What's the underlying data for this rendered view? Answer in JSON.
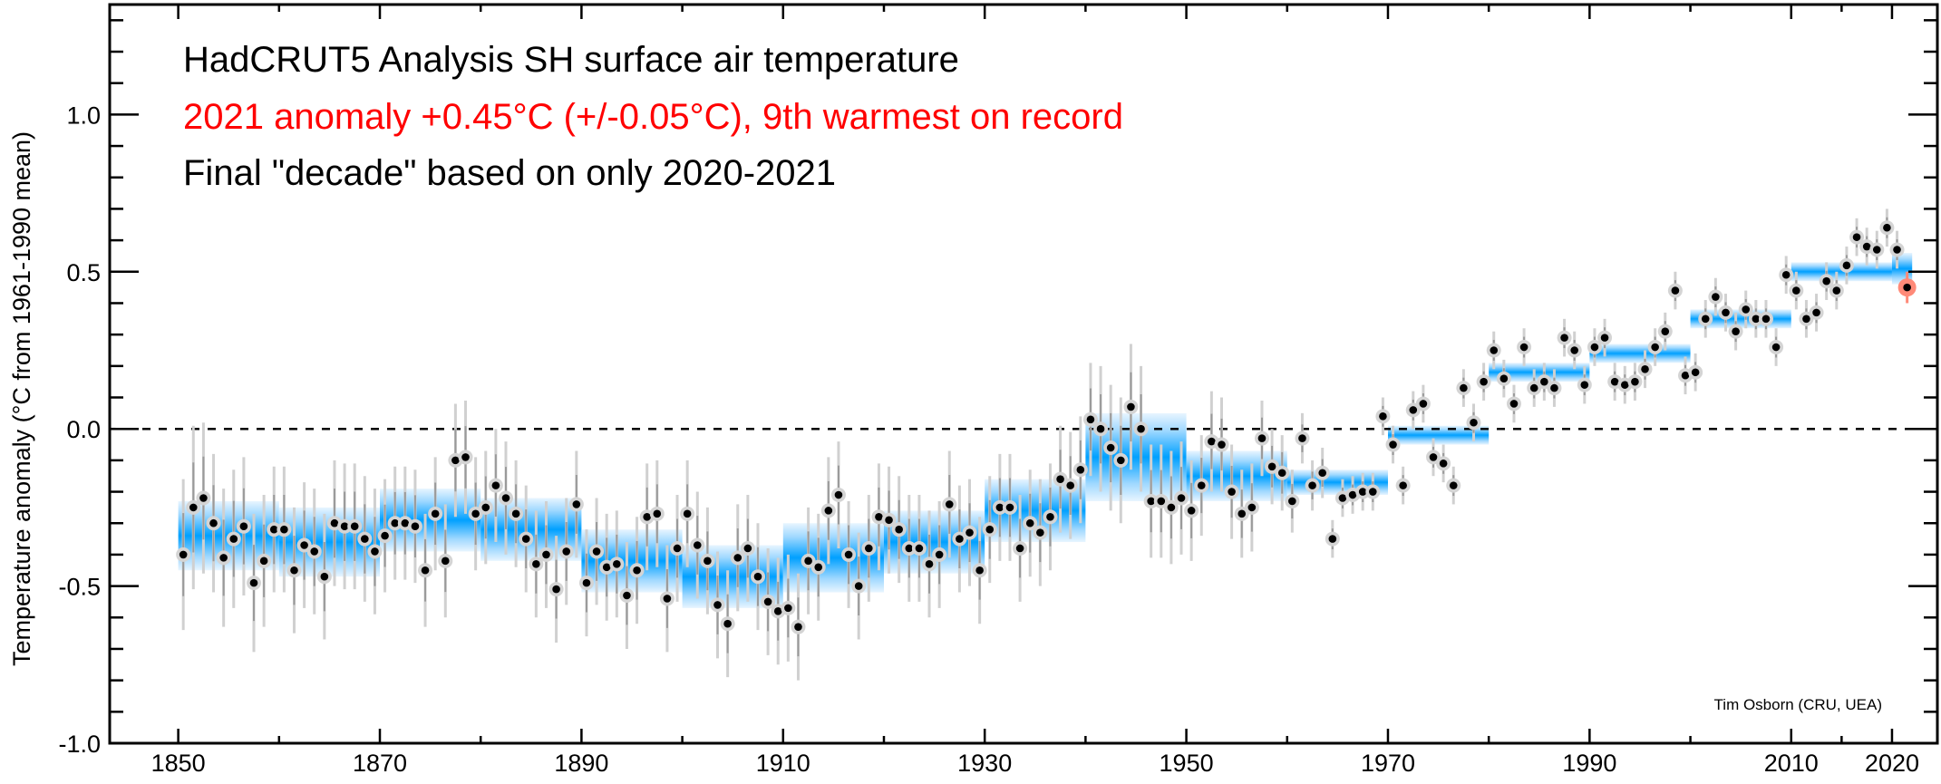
{
  "chart_data": {
    "type": "scatter",
    "title_lines": [
      {
        "text": "HadCRUT5 Analysis SH surface air temperature",
        "color": "#000000"
      },
      {
        "text": "2021 anomaly +0.45°C (+/-0.05°C), 9th warmest on record",
        "color": "#ff0000"
      },
      {
        "text": "Final \"decade\" based on only 2020-2021",
        "color": "#000000"
      }
    ],
    "ylabel": "Temperature anomaly (°C from 1961-1990 mean)",
    "xlabel": "",
    "credit": "Tim Osborn (CRU, UEA)",
    "xlim": [
      1843.2,
      2024.5
    ],
    "ylim": [
      -1.0,
      1.35
    ],
    "x_major_ticks": [
      1850,
      1870,
      1890,
      1910,
      1930,
      1950,
      1970,
      1990,
      2010,
      2020
    ],
    "x_minor_ticks": [
      1860,
      1880,
      1900,
      1920,
      1940,
      1960,
      1980,
      2000,
      2015
    ],
    "x_tick_labels": [
      "1850",
      "1870",
      "1890",
      "1910",
      "1930",
      "1950",
      "1970",
      "1990",
      "2010",
      "2020"
    ],
    "y_major_ticks": [
      -1.0,
      -0.5,
      0.0,
      0.5,
      1.0
    ],
    "y_tick_labels": [
      "-1.0",
      "-0.5",
      "0.0",
      "0.5",
      "1.0"
    ],
    "y_minor_step": 0.1,
    "zero_line": "dashed",
    "grid": false,
    "colors": {
      "point": "#000000",
      "point_halo": "#d4d4d4",
      "errorbar_outer": "#d0d0d0",
      "errorbar_inner": "#9a9a9a",
      "band_center": "#00a0ff",
      "band_edge": "#e6f4ff",
      "highlight_halo": "#ff8a78",
      "highlight_bar": "#ff3b2f"
    },
    "highlight_year": 2021,
    "years_start": 1850,
    "annual_values": [
      -0.4,
      -0.25,
      -0.22,
      -0.3,
      -0.41,
      -0.35,
      -0.31,
      -0.49,
      -0.42,
      -0.32,
      -0.32,
      -0.45,
      -0.37,
      -0.39,
      -0.47,
      -0.3,
      -0.31,
      -0.31,
      -0.35,
      -0.39,
      -0.34,
      -0.3,
      -0.3,
      -0.31,
      -0.45,
      -0.27,
      -0.42,
      -0.1,
      -0.09,
      -0.27,
      -0.25,
      -0.18,
      -0.22,
      -0.27,
      -0.35,
      -0.43,
      -0.4,
      -0.51,
      -0.39,
      -0.24,
      -0.49,
      -0.39,
      -0.44,
      -0.43,
      -0.53,
      -0.45,
      -0.28,
      -0.27,
      -0.54,
      -0.38,
      -0.27,
      -0.37,
      -0.42,
      -0.56,
      -0.62,
      -0.41,
      -0.38,
      -0.47,
      -0.55,
      -0.58,
      -0.57,
      -0.63,
      -0.42,
      -0.44,
      -0.26,
      -0.21,
      -0.4,
      -0.5,
      -0.38,
      -0.28,
      -0.29,
      -0.32,
      -0.38,
      -0.38,
      -0.43,
      -0.4,
      -0.24,
      -0.35,
      -0.33,
      -0.45,
      -0.32,
      -0.25,
      -0.25,
      -0.38,
      -0.3,
      -0.33,
      -0.28,
      -0.16,
      -0.18,
      -0.13,
      0.03,
      0.0,
      -0.06,
      -0.1,
      0.07,
      0.0,
      -0.23,
      -0.23,
      -0.25,
      -0.22,
      -0.26,
      -0.18,
      -0.04,
      -0.05,
      -0.2,
      -0.27,
      -0.25,
      -0.03,
      -0.12,
      -0.14,
      -0.23,
      -0.03,
      -0.18,
      -0.14,
      -0.35,
      -0.22,
      -0.21,
      -0.2,
      -0.2,
      0.04,
      -0.05,
      -0.18,
      0.06,
      0.08,
      -0.09,
      -0.11,
      -0.18,
      0.13,
      0.02,
      0.15,
      0.25,
      0.16,
      0.08,
      0.26,
      0.13,
      0.15,
      0.13,
      0.29,
      0.25,
      0.14,
      0.26,
      0.29,
      0.15,
      0.14,
      0.15,
      0.19,
      0.26,
      0.31,
      0.44,
      0.17,
      0.18,
      0.35,
      0.42,
      0.37,
      0.31,
      0.38,
      0.35,
      0.35,
      0.26,
      0.49,
      0.44,
      0.35,
      0.37,
      0.47,
      0.44,
      0.52,
      0.61,
      0.58,
      0.57,
      0.64,
      0.57,
      0.45
    ],
    "annual_uncertainty_95": [
      0.24,
      0.26,
      0.24,
      0.22,
      0.22,
      0.22,
      0.22,
      0.22,
      0.21,
      0.2,
      0.2,
      0.2,
      0.2,
      0.2,
      0.2,
      0.2,
      0.2,
      0.2,
      0.2,
      0.2,
      0.18,
      0.18,
      0.18,
      0.18,
      0.18,
      0.18,
      0.18,
      0.18,
      0.18,
      0.18,
      0.18,
      0.18,
      0.18,
      0.17,
      0.17,
      0.17,
      0.17,
      0.17,
      0.17,
      0.17,
      0.17,
      0.17,
      0.17,
      0.17,
      0.17,
      0.17,
      0.17,
      0.17,
      0.17,
      0.17,
      0.17,
      0.17,
      0.17,
      0.17,
      0.17,
      0.17,
      0.17,
      0.17,
      0.17,
      0.17,
      0.17,
      0.17,
      0.17,
      0.17,
      0.17,
      0.17,
      0.17,
      0.17,
      0.17,
      0.17,
      0.17,
      0.17,
      0.17,
      0.17,
      0.17,
      0.17,
      0.17,
      0.17,
      0.17,
      0.17,
      0.17,
      0.17,
      0.17,
      0.17,
      0.17,
      0.17,
      0.17,
      0.17,
      0.17,
      0.17,
      0.18,
      0.2,
      0.2,
      0.2,
      0.2,
      0.2,
      0.18,
      0.18,
      0.18,
      0.18,
      0.16,
      0.16,
      0.16,
      0.15,
      0.15,
      0.14,
      0.14,
      0.12,
      0.12,
      0.12,
      0.1,
      0.08,
      0.08,
      0.08,
      0.06,
      0.06,
      0.06,
      0.06,
      0.06,
      0.06,
      0.06,
      0.06,
      0.06,
      0.06,
      0.06,
      0.06,
      0.06,
      0.06,
      0.06,
      0.06,
      0.06,
      0.06,
      0.06,
      0.06,
      0.06,
      0.06,
      0.06,
      0.06,
      0.06,
      0.06,
      0.06,
      0.06,
      0.06,
      0.06,
      0.06,
      0.06,
      0.06,
      0.06,
      0.06,
      0.06,
      0.06,
      0.06,
      0.06,
      0.06,
      0.06,
      0.06,
      0.06,
      0.06,
      0.06,
      0.06,
      0.06,
      0.06,
      0.06,
      0.06,
      0.06,
      0.06,
      0.06,
      0.06,
      0.06,
      0.06,
      0.06,
      0.05
    ],
    "decadal_means": [
      {
        "start": 1850,
        "end": 1860,
        "value": -0.34,
        "uncertainty": 0.11
      },
      {
        "start": 1860,
        "end": 1870,
        "value": -0.36,
        "uncertainty": 0.11
      },
      {
        "start": 1870,
        "end": 1880,
        "value": -0.29,
        "uncertainty": 0.1
      },
      {
        "start": 1880,
        "end": 1890,
        "value": -0.32,
        "uncertainty": 0.1
      },
      {
        "start": 1890,
        "end": 1900,
        "value": -0.42,
        "uncertainty": 0.1
      },
      {
        "start": 1900,
        "end": 1910,
        "value": -0.47,
        "uncertainty": 0.1
      },
      {
        "start": 1910,
        "end": 1920,
        "value": -0.41,
        "uncertainty": 0.11
      },
      {
        "start": 1920,
        "end": 1930,
        "value": -0.36,
        "uncertainty": 0.1
      },
      {
        "start": 1930,
        "end": 1940,
        "value": -0.26,
        "uncertainty": 0.1
      },
      {
        "start": 1940,
        "end": 1950,
        "value": -0.09,
        "uncertainty": 0.14
      },
      {
        "start": 1950,
        "end": 1960,
        "value": -0.15,
        "uncertainty": 0.08
      },
      {
        "start": 1960,
        "end": 1970,
        "value": -0.17,
        "uncertainty": 0.04
      },
      {
        "start": 1970,
        "end": 1980,
        "value": -0.02,
        "uncertainty": 0.03
      },
      {
        "start": 1980,
        "end": 1990,
        "value": 0.18,
        "uncertainty": 0.03
      },
      {
        "start": 1990,
        "end": 2000,
        "value": 0.24,
        "uncertainty": 0.03
      },
      {
        "start": 2000,
        "end": 2010,
        "value": 0.35,
        "uncertainty": 0.03
      },
      {
        "start": 2010,
        "end": 2020,
        "value": 0.5,
        "uncertainty": 0.03
      },
      {
        "start": 2020,
        "end": 2022,
        "value": 0.51,
        "uncertainty": 0.05
      }
    ]
  }
}
